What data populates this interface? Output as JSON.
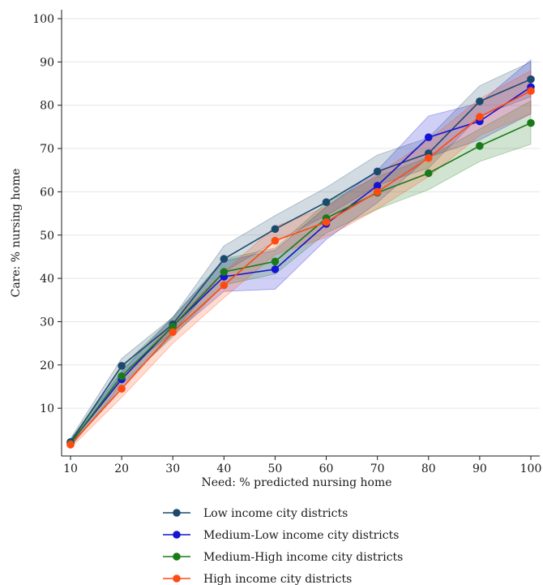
{
  "chart_data": {
    "type": "line",
    "title": "",
    "xlabel": "Need: % predicted nursing home",
    "ylabel": "Care: % nursing home",
    "xlim": [
      10,
      100
    ],
    "ylim": [
      0,
      100
    ],
    "x_ticks": [
      10,
      20,
      30,
      40,
      50,
      60,
      70,
      80,
      90,
      100
    ],
    "y_ticks": [
      10,
      20,
      30,
      40,
      50,
      60,
      70,
      80,
      90,
      100
    ],
    "x_tick_labels": [
      "10",
      "20",
      "30",
      "40",
      "50",
      "60",
      "70",
      "80",
      "90",
      "100"
    ],
    "y_tick_labels": [
      "10",
      "20",
      "30",
      "40",
      "50",
      "60",
      "70",
      "80",
      "90",
      "100"
    ],
    "grid": "horizontal",
    "legend_position": "bottom",
    "x": [
      10,
      20,
      30,
      40,
      50,
      60,
      70,
      80,
      90,
      100
    ],
    "series": [
      {
        "name": "Low income city districts",
        "color": "#1c4a6e",
        "values": [
          2.2,
          19.8,
          29.4,
          44.5,
          51.4,
          57.6,
          64.7,
          68.9,
          80.9,
          86.0
        ],
        "ci_low": [
          1.5,
          18.0,
          27.5,
          41.5,
          48.5,
          54.5,
          61.5,
          65.5,
          77.5,
          82.0
        ],
        "ci_high": [
          3.0,
          21.5,
          31.0,
          47.5,
          54.5,
          61.0,
          68.5,
          72.5,
          84.5,
          90.0
        ]
      },
      {
        "name": "Medium-Low income city districts",
        "color": "#1414d4",
        "values": [
          2.0,
          16.7,
          29.0,
          40.4,
          42.1,
          52.6,
          61.4,
          72.6,
          76.3,
          84.2
        ],
        "ci_low": [
          1.2,
          15.0,
          27.0,
          37.0,
          37.5,
          49.0,
          57.5,
          68.0,
          72.0,
          78.0
        ],
        "ci_high": [
          2.8,
          18.5,
          31.0,
          44.0,
          46.5,
          56.5,
          65.0,
          77.5,
          80.5,
          90.5
        ]
      },
      {
        "name": "Medium-High income city districts",
        "color": "#1a7a1a",
        "values": [
          1.9,
          17.4,
          28.9,
          41.5,
          43.9,
          53.9,
          59.8,
          64.3,
          70.6,
          75.9
        ],
        "ci_low": [
          1.1,
          15.5,
          26.5,
          38.5,
          41.0,
          50.5,
          56.0,
          60.5,
          67.0,
          71.0
        ],
        "ci_high": [
          2.7,
          19.5,
          31.0,
          44.5,
          47.0,
          57.5,
          63.5,
          68.0,
          74.5,
          81.0
        ]
      },
      {
        "name": "High income city districts",
        "color": "#ff4a12",
        "values": [
          1.6,
          14.5,
          27.6,
          38.4,
          48.7,
          53.0,
          60.0,
          67.8,
          77.3,
          83.3
        ],
        "ci_low": [
          0.8,
          12.5,
          25.0,
          35.5,
          45.5,
          49.5,
          56.0,
          63.5,
          73.0,
          78.0
        ],
        "ci_high": [
          2.4,
          16.5,
          30.0,
          41.5,
          52.0,
          56.5,
          64.0,
          72.0,
          81.5,
          88.0
        ]
      }
    ]
  }
}
